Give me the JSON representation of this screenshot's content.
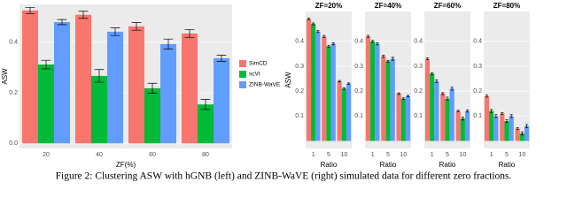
{
  "caption": "Figure 2: Clustering ASW with hGNB (left) and ZINB-WaVE (right) simulated data for different zero fractions.",
  "chart_data": [
    {
      "type": "bar",
      "x_label": "ZF(%)",
      "y_label": "ASW",
      "categories": [
        "20",
        "40",
        "60",
        "80"
      ],
      "series": [
        {
          "name": "SimCD",
          "color": "#F8766D",
          "values": [
            0.526,
            0.509,
            0.463,
            0.435
          ],
          "errors": [
            0.012,
            0.014,
            0.015,
            0.016
          ]
        },
        {
          "name": "scVI",
          "color": "#00BA38",
          "values": [
            0.312,
            0.267,
            0.218,
            0.154
          ],
          "errors": [
            0.017,
            0.025,
            0.02,
            0.02
          ]
        },
        {
          "name": "ZINB-WaVE",
          "color": "#619CFF",
          "values": [
            0.48,
            0.442,
            0.393,
            0.337
          ],
          "errors": [
            0.01,
            0.015,
            0.02,
            0.012
          ]
        }
      ],
      "ylim": [
        -0.02,
        0.55
      ],
      "yticks": [
        {
          "value": 0,
          "label": "0.0"
        },
        0.2,
        0.4
      ],
      "grid": true
    },
    {
      "type": "bar",
      "title": "ZF=20%",
      "x_label": "Ratio",
      "y_label": "ASW",
      "categories": [
        "1",
        "5",
        "10"
      ],
      "series": [
        {
          "color": "#F8766D",
          "values": [
            0.49,
            0.42,
            0.24
          ],
          "errors": [
            0.004,
            0.004,
            0.003
          ]
        },
        {
          "color": "#00BA38",
          "values": [
            0.47,
            0.38,
            0.21
          ],
          "errors": [
            0.004,
            0.004,
            0.003
          ]
        },
        {
          "color": "#619CFF",
          "values": [
            0.44,
            0.39,
            0.23
          ],
          "errors": [
            0.004,
            0.004,
            0.003
          ]
        }
      ],
      "ylim": [
        -0.03,
        0.52
      ],
      "yticks": [
        0.1,
        0.2,
        0.3,
        0.4
      ],
      "grid": true
    },
    {
      "type": "bar",
      "title": "ZF=40%",
      "x_label": "Ratio",
      "categories": [
        "1",
        "5",
        "10"
      ],
      "series": [
        {
          "color": "#F8766D",
          "values": [
            0.42,
            0.34,
            0.19
          ],
          "errors": [
            0.004,
            0.004,
            0.003
          ]
        },
        {
          "color": "#00BA38",
          "values": [
            0.4,
            0.32,
            0.17
          ],
          "errors": [
            0.004,
            0.004,
            0.003
          ]
        },
        {
          "color": "#619CFF",
          "values": [
            0.39,
            0.33,
            0.18
          ],
          "errors": [
            0.004,
            0.006,
            0.003
          ]
        }
      ],
      "ylim": [
        -0.03,
        0.52
      ],
      "yticks": [
        0.1,
        0.2,
        0.3,
        0.4
      ],
      "grid": true
    },
    {
      "type": "bar",
      "title": "ZF=60%",
      "x_label": "Ratio",
      "categories": [
        "1",
        "5",
        "10"
      ],
      "series": [
        {
          "color": "#F8766D",
          "values": [
            0.33,
            0.19,
            0.12
          ],
          "errors": [
            0.004,
            0.004,
            0.003
          ]
        },
        {
          "color": "#00BA38",
          "values": [
            0.27,
            0.17,
            0.09
          ],
          "errors": [
            0.004,
            0.006,
            0.006
          ]
        },
        {
          "color": "#619CFF",
          "values": [
            0.24,
            0.21,
            0.12
          ],
          "errors": [
            0.005,
            0.006,
            0.004
          ]
        }
      ],
      "ylim": [
        -0.03,
        0.52
      ],
      "yticks": [
        0.1,
        0.2,
        0.3,
        0.4
      ],
      "grid": true
    },
    {
      "type": "bar",
      "title": "ZF=80%",
      "x_label": "Ratio",
      "categories": [
        "1",
        "5",
        "10"
      ],
      "series": [
        {
          "color": "#F8766D",
          "values": [
            0.18,
            0.11,
            0.05
          ],
          "errors": [
            0.004,
            0.004,
            0.004
          ]
        },
        {
          "color": "#00BA38",
          "values": [
            0.12,
            0.08,
            0.03
          ],
          "errors": [
            0.006,
            0.006,
            0.006
          ]
        },
        {
          "color": "#619CFF",
          "values": [
            0.1,
            0.1,
            0.06
          ],
          "errors": [
            0.006,
            0.006,
            0.006
          ]
        }
      ],
      "ylim": [
        -0.03,
        0.52
      ],
      "yticks": [
        0.1,
        0.2,
        0.3,
        0.4
      ],
      "grid": true
    }
  ]
}
